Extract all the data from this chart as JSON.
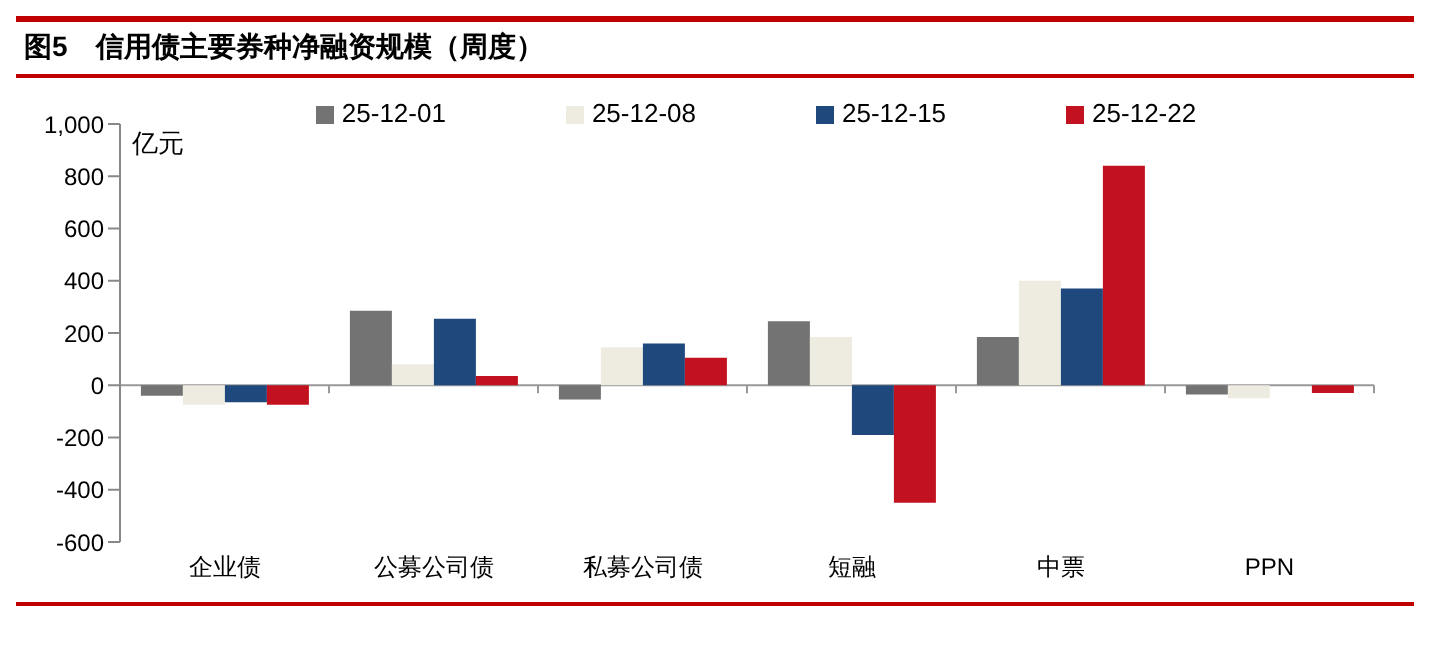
{
  "chart_data": {
    "type": "bar",
    "title": "图5　信用债主要券种净融资规模（周度）",
    "ylabel": "亿元",
    "categories": [
      "企业债",
      "公募公司债",
      "私募公司债",
      "短融",
      "中票",
      "PPN"
    ],
    "series": [
      {
        "name": "25-12-01",
        "color": "#737373",
        "values": [
          -40,
          285,
          -55,
          245,
          185,
          -35
        ]
      },
      {
        "name": "25-12-08",
        "color": "#eeebe0",
        "values": [
          -75,
          80,
          145,
          185,
          400,
          -50
        ]
      },
      {
        "name": "25-12-15",
        "color": "#1f497d",
        "values": [
          -65,
          255,
          160,
          -190,
          370,
          0
        ]
      },
      {
        "name": "25-12-22",
        "color": "#c3121f",
        "values": [
          -75,
          35,
          105,
          -450,
          840,
          -30
        ]
      }
    ],
    "ylim": [
      -600,
      1000
    ],
    "yticks": [
      -600,
      -400,
      -200,
      0,
      200,
      400,
      600,
      800,
      {
        "value": 1000,
        "label": "1,000"
      }
    ],
    "legend": "top"
  }
}
